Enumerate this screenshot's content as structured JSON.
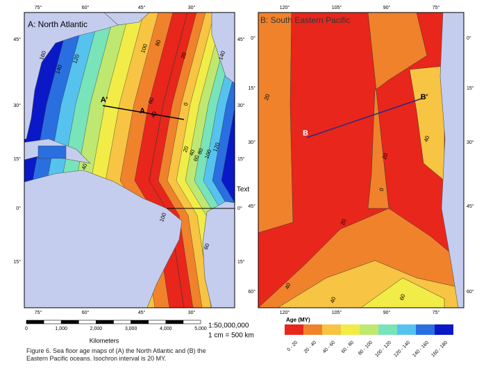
{
  "panel_a": {
    "title": "A: North Atlantic",
    "top_lon_labels": [
      "75°",
      "60°",
      "45°",
      "30°"
    ],
    "bottom_lon_labels": [
      "75°",
      "60°",
      "45°",
      "30°"
    ],
    "left_lat_labels": [
      "45°",
      "30°",
      "15°",
      "0°",
      "15°"
    ],
    "right_lat_labels": [
      "45°",
      "30°",
      "15°",
      "0°",
      "15°"
    ],
    "isochron_labels": [
      "160",
      "140",
      "120",
      "100",
      "80",
      "60",
      "40",
      "20",
      "0",
      "20",
      "40",
      "60",
      "80",
      "100",
      "120",
      "140",
      "100",
      "60",
      "40"
    ],
    "profile_labels": [
      "A'",
      "A"
    ],
    "annotation": "Text"
  },
  "panel_b": {
    "title": "B: South Eastern Pacific",
    "top_lon_labels": [
      "120°",
      "105°",
      "90°",
      "75°"
    ],
    "bottom_lon_labels": [
      "120°",
      "105°",
      "90°",
      "75°"
    ],
    "left_lat_labels": [
      "0°",
      "15°",
      "30°",
      "45°",
      "60°"
    ],
    "right_lat_labels": [
      "0°",
      "15°",
      "30°",
      "45°",
      "60°"
    ],
    "isochron_labels": [
      "20",
      "40",
      "0",
      "20",
      "40",
      "20",
      "40",
      "60"
    ],
    "profile_labels": [
      "B",
      "B'"
    ]
  },
  "scale_bar": {
    "ticks": [
      "0",
      "1,000",
      "2,000",
      "3,000",
      "4,000",
      "5,000"
    ],
    "unit": "Kilometers",
    "ratio": "1:50,000,000",
    "equivalence": "1 cm = 500 km"
  },
  "legend": {
    "title": "Age (MY)",
    "classes": [
      {
        "label": "0 - 20",
        "color": "#e8261c"
      },
      {
        "label": "20 - 40",
        "color": "#f0822c"
      },
      {
        "label": "40 - 60",
        "color": "#f7c443"
      },
      {
        "label": "60 - 80",
        "color": "#f2ec48"
      },
      {
        "label": "80 - 100",
        "color": "#bfe870"
      },
      {
        "label": "100 - 120",
        "color": "#79e3b9"
      },
      {
        "label": "120 - 140",
        "color": "#56c3ee"
      },
      {
        "label": "140 - 160",
        "color": "#2a6fe0"
      },
      {
        "label": "160 - 180",
        "color": "#0a18c8"
      }
    ]
  },
  "caption": "Figure 6. Sea floor age maps of (A) the North Atlantic and (B) the Eastern Pacific oceans. Isochron interval is 20 MY."
}
